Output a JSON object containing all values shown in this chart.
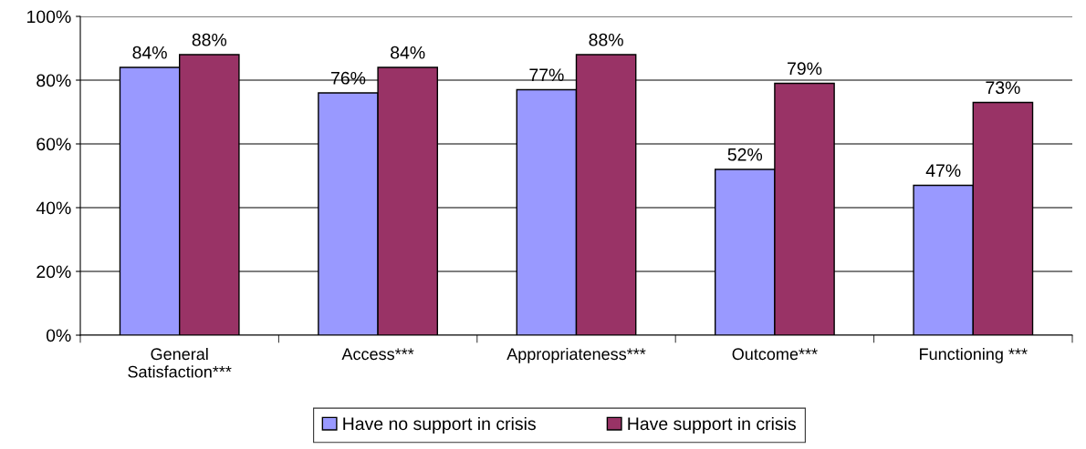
{
  "chart_data": {
    "type": "bar",
    "categories": [
      "General\nSatisfaction***",
      "Access***",
      "Appropriateness***",
      "Outcome***",
      "Functioning ***"
    ],
    "series": [
      {
        "name": "Have no support in crisis",
        "color": "#9999ff",
        "values": [
          84,
          76,
          77,
          52,
          47
        ],
        "value_labels": [
          "84%",
          "76%",
          "77%",
          "52%",
          "47%"
        ]
      },
      {
        "name": "Have support in crisis",
        "color": "#993366",
        "values": [
          88,
          84,
          88,
          79,
          73
        ],
        "value_labels": [
          "88%",
          "84%",
          "88%",
          "79%",
          "73%"
        ]
      }
    ],
    "ylim": [
      0,
      100
    ],
    "yticks": [
      {
        "value": 0,
        "label": "0%"
      },
      {
        "value": 20,
        "label": "20%"
      },
      {
        "value": 40,
        "label": "40%"
      },
      {
        "value": 60,
        "label": "60%"
      },
      {
        "value": 80,
        "label": "80%"
      },
      {
        "value": 100,
        "label": "100%"
      }
    ],
    "grid": "y",
    "legend": "bottom"
  }
}
